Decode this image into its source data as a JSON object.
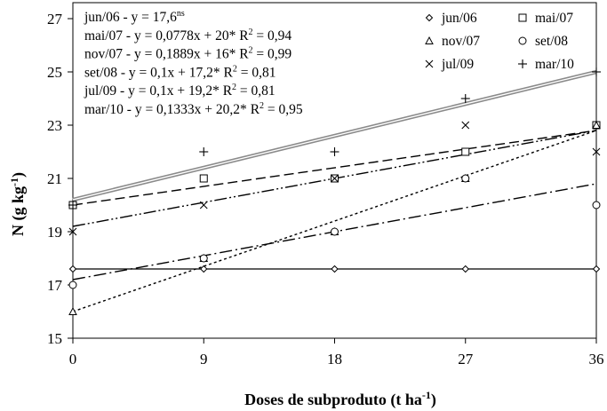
{
  "chart_data": {
    "type": "scatter",
    "xlabel_main": "Doses de subproduto (t ha",
    "xlabel_sup": "-1",
    "xlabel_close": ")",
    "ylabel_main": "N (g kg",
    "ylabel_sup": "-1",
    "ylabel_close": ")",
    "xlim": [
      0,
      36
    ],
    "ylim": [
      15,
      27.6
    ],
    "x_ticks": [
      0,
      9,
      18,
      27,
      36
    ],
    "y_ticks": [
      15,
      17,
      19,
      21,
      23,
      25,
      27
    ],
    "x": [
      0,
      9,
      18,
      27,
      36
    ],
    "series": [
      {
        "name": "jun/06",
        "marker": "diamond",
        "values": [
          17.6,
          17.6,
          17.6,
          17.6,
          17.6
        ],
        "fit": [
          17.6,
          0
        ],
        "dash": "none",
        "equation": "jun/06 - y = 17,6",
        "sup": "ns",
        "r2": ""
      },
      {
        "name": "mai/07",
        "marker": "square",
        "values": [
          20.0,
          21.0,
          21.0,
          22.0,
          23.0
        ],
        "fit": [
          20.0,
          0.0778
        ],
        "dash": "11 5",
        "equation": "mai/07 - y = 0,0778x  + 20*",
        "sup": "",
        "r2": "0,94"
      },
      {
        "name": "nov/07",
        "marker": "triangle",
        "values": [
          16.0,
          18.0,
          19.0,
          21.0,
          23.0
        ],
        "fit": [
          16.0,
          0.1889
        ],
        "dash": "3 3",
        "equation": "nov/07 - y = 0,1889x  + 16*",
        "sup": "",
        "r2": "0,99"
      },
      {
        "name": "set/08",
        "marker": "circle",
        "values": [
          17.0,
          18.0,
          19.0,
          21.0,
          20.0
        ],
        "fit": [
          17.2,
          0.1
        ],
        "dash": "14 4 2 4",
        "equation": "set/08 - y = 0,1x + 17,2*",
        "sup": "",
        "r2": "0,81"
      },
      {
        "name": "jul/09",
        "marker": "x",
        "values": [
          19.0,
          20.0,
          21.0,
          23.0,
          22.0
        ],
        "fit": [
          19.2,
          0.1
        ],
        "dash": "14 3 2 3 2 3",
        "equation": "jul/09 - y = 0,1x + 19,2*",
        "sup": "",
        "r2": "0,81"
      },
      {
        "name": "mar/10",
        "marker": "plus",
        "values": [
          20.0,
          22.0,
          22.0,
          24.0,
          25.0
        ],
        "fit": [
          20.2,
          0.1333
        ],
        "dash": "double",
        "equation": "mar/10 - y = 0,1333x  + 20,2*",
        "sup": "",
        "r2": "0,95"
      }
    ],
    "legend_order": [
      "jun/06",
      "mai/07",
      "nov/07",
      "set/08",
      "jul/09",
      "mar/10"
    ],
    "legend": "top-right",
    "grid": false
  }
}
